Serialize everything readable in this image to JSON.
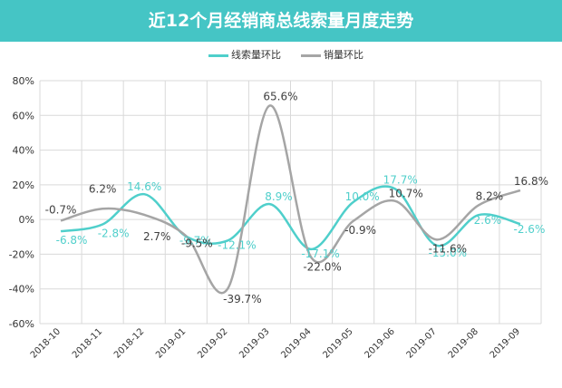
{
  "title": "近12个月经销商总线索量月度走势",
  "colors": {
    "header_bg": "#45c5c5",
    "series_leads": "#4fcfcb",
    "series_sales": "#a5a5a5"
  },
  "chart_data": {
    "type": "line",
    "title": "近12个月经销商总线索量月度走势",
    "categories": [
      "2018-10",
      "2018-11",
      "2018-12",
      "2019-01",
      "2019-02",
      "2019-03",
      "2019-04",
      "2019-05",
      "2019-06",
      "2019-07",
      "2019-08",
      "2019-09"
    ],
    "series": [
      {
        "name": "线索量环比",
        "values": [
          -6.8,
          -2.8,
          14.6,
          -9.7,
          -12.1,
          8.9,
          -17.1,
          10.0,
          17.7,
          -15.0,
          2.6,
          -2.6
        ]
      },
      {
        "name": "销量环比",
        "values": [
          -0.7,
          6.2,
          2.7,
          -9.5,
          -39.7,
          65.6,
          -22.0,
          -0.9,
          10.7,
          -11.6,
          8.2,
          16.8
        ]
      }
    ],
    "y_ticks": [
      "80%",
      "60%",
      "40%",
      "20%",
      "0%",
      "-20%",
      "-40%",
      "-60%"
    ],
    "ylim": [
      -60,
      80
    ],
    "value_unit": "%",
    "grid": true,
    "legend": "top-center",
    "smooth": true
  }
}
